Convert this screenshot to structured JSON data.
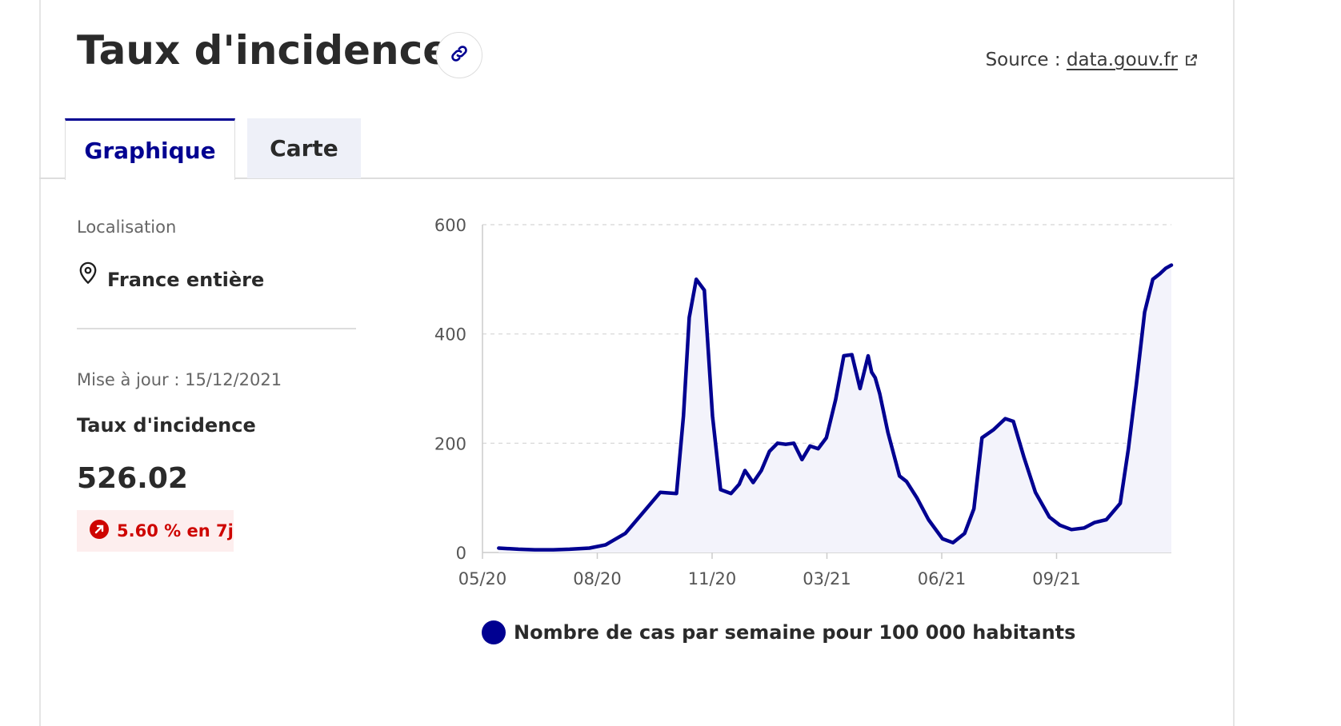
{
  "header": {
    "title": "Taux d'incidence",
    "source_prefix": "Source :",
    "source_link": "data.gouv.fr"
  },
  "tabs": [
    {
      "label": "Graphique",
      "active": true
    },
    {
      "label": "Carte",
      "active": false
    }
  ],
  "sidebar": {
    "localisation_label": "Localisation",
    "localisation_value": "France entière",
    "update_text": "Mise à jour : 15/12/2021",
    "indicator_label": "Taux d'incidence",
    "indicator_value": "526.02",
    "trend_text": "5.60 % en 7j"
  },
  "colors": {
    "accent": "#000091",
    "trend_up": "#ce0500",
    "area_fill": "#f3f3fb"
  },
  "icons": {
    "link": "link-icon",
    "external": "external-link-icon",
    "location": "map-pin-icon",
    "trend": "arrow-up-right-icon"
  },
  "chart_data": {
    "type": "area",
    "legend": "Nombre de cas par semaine pour 100 000 habitants",
    "xlabels": [
      "05/20",
      "08/20",
      "11/20",
      "03/21",
      "06/21",
      "09/21"
    ],
    "ylim": [
      0,
      600
    ],
    "yticks": [
      0,
      200,
      400,
      600
    ],
    "grid": true,
    "series": [
      {
        "name": "Nombre de cas par semaine pour 100 000 habitants",
        "x": [
          "2020-05-15",
          "2020-06-01",
          "2020-06-15",
          "2020-07-01",
          "2020-07-15",
          "2020-08-01",
          "2020-08-15",
          "2020-09-01",
          "2020-09-15",
          "2020-10-01",
          "2020-10-15",
          "2020-10-21",
          "2020-10-26",
          "2020-11-01",
          "2020-11-08",
          "2020-11-15",
          "2020-11-22",
          "2020-12-01",
          "2020-12-08",
          "2020-12-13",
          "2020-12-20",
          "2020-12-27",
          "2021-01-03",
          "2021-01-10",
          "2021-01-17",
          "2021-01-24",
          "2021-01-31",
          "2021-02-07",
          "2021-02-14",
          "2021-02-21",
          "2021-03-01",
          "2021-03-08",
          "2021-03-15",
          "2021-03-22",
          "2021-03-29",
          "2021-04-01",
          "2021-04-04",
          "2021-04-08",
          "2021-04-15",
          "2021-04-25",
          "2021-05-01",
          "2021-05-10",
          "2021-05-20",
          "2021-06-01",
          "2021-06-10",
          "2021-06-20",
          "2021-06-28",
          "2021-07-05",
          "2021-07-15",
          "2021-07-25",
          "2021-08-01",
          "2021-08-10",
          "2021-08-20",
          "2021-09-01",
          "2021-09-10",
          "2021-09-20",
          "2021-10-01",
          "2021-10-10",
          "2021-10-20",
          "2021-11-01",
          "2021-11-08",
          "2021-11-15",
          "2021-11-22",
          "2021-11-29",
          "2021-12-05",
          "2021-12-10",
          "2021-12-15"
        ],
        "y": [
          8,
          6,
          5,
          5,
          6,
          8,
          14,
          35,
          70,
          110,
          108,
          250,
          430,
          500,
          480,
          250,
          115,
          108,
          125,
          150,
          128,
          150,
          185,
          200,
          198,
          200,
          170,
          195,
          190,
          210,
          280,
          360,
          362,
          300,
          360,
          330,
          320,
          290,
          220,
          140,
          130,
          100,
          60,
          25,
          18,
          35,
          80,
          210,
          225,
          245,
          240,
          175,
          110,
          65,
          50,
          42,
          45,
          55,
          60,
          90,
          190,
          310,
          440,
          500,
          510,
          520,
          526
        ]
      }
    ]
  }
}
